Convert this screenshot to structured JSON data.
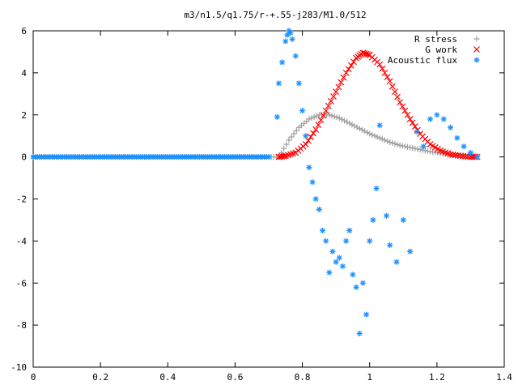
{
  "chart_data": {
    "type": "scatter",
    "title": "m3/n1.5/q1.75/r-+.55-j283/M1.0/512",
    "xlabel": "",
    "ylabel": "",
    "xlim": [
      0,
      1.4
    ],
    "ylim": [
      -10,
      6
    ],
    "xticks": [
      "0",
      "0.2",
      "0.4",
      "0.6",
      "0.8",
      "1",
      "1.2",
      "1.4"
    ],
    "yticks": [
      "6",
      "4",
      "2",
      "0",
      "-2",
      "-4",
      "-6",
      "-8",
      "-10"
    ],
    "grid": false,
    "legend_position": "top-right",
    "series": [
      {
        "name": "R stress",
        "marker": "plus",
        "color": "#a0a0a0",
        "x": [
          0.0,
          0.05,
          0.1,
          0.15,
          0.2,
          0.25,
          0.3,
          0.35,
          0.4,
          0.45,
          0.5,
          0.55,
          0.6,
          0.65,
          0.7,
          0.73,
          0.76,
          0.79,
          0.82,
          0.85,
          0.88,
          0.91,
          0.94,
          0.97,
          1.0,
          1.03,
          1.06,
          1.09,
          1.12,
          1.15,
          1.18,
          1.21,
          1.24,
          1.27,
          1.3,
          1.32
        ],
        "y": [
          0,
          0,
          0,
          0,
          0,
          0,
          0,
          0,
          0,
          0,
          0,
          0,
          0,
          0,
          0,
          0.0,
          0.8,
          1.4,
          1.8,
          2.0,
          2.0,
          1.85,
          1.6,
          1.35,
          1.1,
          0.9,
          0.7,
          0.55,
          0.45,
          0.35,
          0.25,
          0.18,
          0.12,
          0.08,
          0.05,
          0.02
        ]
      },
      {
        "name": "G work",
        "marker": "cross",
        "color": "#ff0000",
        "x": [
          0.73,
          0.75,
          0.78,
          0.81,
          0.84,
          0.87,
          0.9,
          0.93,
          0.96,
          0.98,
          1.0,
          1.03,
          1.06,
          1.09,
          1.12,
          1.15,
          1.18,
          1.21,
          1.24,
          1.27,
          1.3,
          1.32
        ],
        "y": [
          0.0,
          0.05,
          0.2,
          0.6,
          1.3,
          2.2,
          3.1,
          4.0,
          4.7,
          4.95,
          4.85,
          4.4,
          3.6,
          2.6,
          1.8,
          1.1,
          0.6,
          0.3,
          0.12,
          0.05,
          0.0,
          0.0
        ]
      },
      {
        "name": "Acoustic flux",
        "marker": "star",
        "color": "#1e90ff",
        "x": [
          0.0,
          0.05,
          0.1,
          0.15,
          0.2,
          0.25,
          0.3,
          0.35,
          0.4,
          0.45,
          0.5,
          0.55,
          0.6,
          0.65,
          0.7,
          0.725,
          0.73,
          0.74,
          0.75,
          0.755,
          0.76,
          0.765,
          0.77,
          0.78,
          0.79,
          0.8,
          0.81,
          0.82,
          0.83,
          0.84,
          0.85,
          0.86,
          0.87,
          0.88,
          0.89,
          0.9,
          0.91,
          0.92,
          0.93,
          0.94,
          0.95,
          0.96,
          0.97,
          0.98,
          0.99,
          1.0,
          1.01,
          1.02,
          1.03,
          1.05,
          1.06,
          1.08,
          1.1,
          1.12,
          1.14,
          1.16,
          1.18,
          1.2,
          1.22,
          1.24,
          1.26,
          1.28,
          1.3,
          1.32
        ],
        "y": [
          0,
          0,
          0,
          0,
          0,
          0,
          0,
          0,
          0,
          0,
          0,
          0,
          0,
          0,
          0,
          1.9,
          3.5,
          4.5,
          5.5,
          5.8,
          6.0,
          5.9,
          5.6,
          4.8,
          3.5,
          2.2,
          1.0,
          -0.5,
          -1.2,
          -2.0,
          -2.5,
          -3.5,
          -4.0,
          -5.5,
          -4.5,
          -5.0,
          -4.8,
          -5.2,
          -4.0,
          -3.5,
          -5.6,
          -6.2,
          -8.4,
          -6.0,
          -7.5,
          -4.0,
          -3.0,
          -1.5,
          1.5,
          -2.8,
          -4.2,
          -5.0,
          -3.0,
          -4.5,
          1.2,
          0.5,
          1.8,
          2.0,
          1.8,
          1.4,
          0.9,
          0.5,
          0.2,
          0.0
        ]
      }
    ]
  }
}
